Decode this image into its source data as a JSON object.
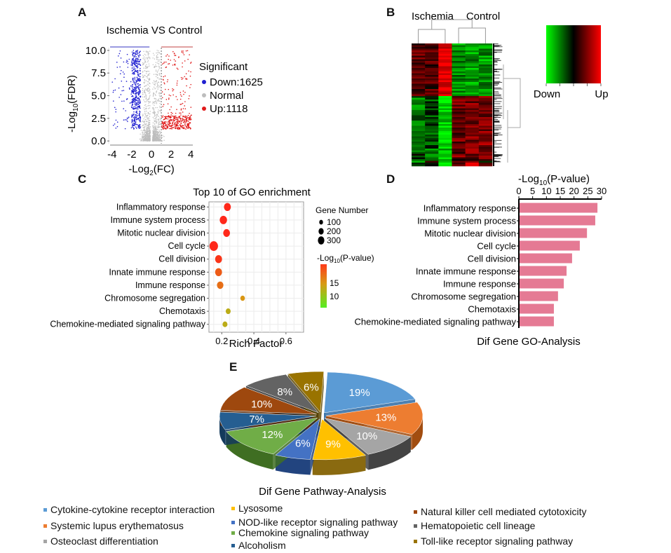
{
  "panels": {
    "A": "A",
    "B": "B",
    "C": "C",
    "D": "D",
    "E": "E"
  },
  "chart_data": [
    {
      "id": "A",
      "type": "scatter",
      "title": "Ischemia VS Control",
      "xlabel": "-Log2(FC)",
      "xlabel_main": "-Log",
      "xlabel_sub": "2",
      "xlabel_tail": "(FC)",
      "ylabel_main": "-Log",
      "ylabel_sub": "10",
      "ylabel_tail": "(FDR)",
      "xlim": [
        -4.2,
        4.2
      ],
      "ylim": [
        -0.3,
        10.3
      ],
      "xticks": [
        -4,
        -2,
        0,
        2,
        4
      ],
      "xtick_labels": [
        "-4",
        "-2",
        "0",
        "2",
        "4"
      ],
      "yticks": [
        0,
        2.5,
        5,
        7.5,
        10
      ],
      "ytick_labels": [
        "0.0",
        "2.5",
        "5.0",
        "7.5",
        "10.0"
      ],
      "threshold_x": 1,
      "legend": {
        "title": "Significant",
        "items": [
          {
            "label": "Down:1625",
            "color": "#1f1fd0"
          },
          {
            "label": "Normal",
            "color": "#bdbdbd"
          },
          {
            "label": "Up:1118",
            "color": "#e01b1b"
          }
        ]
      },
      "series": [
        {
          "name": "Down",
          "count": 1625,
          "color": "#1f1fd0"
        },
        {
          "name": "Normal",
          "color": "#bdbdbd"
        },
        {
          "name": "Up",
          "count": 1118,
          "color": "#e01b1b"
        }
      ]
    },
    {
      "id": "B",
      "type": "heatmap",
      "group_labels": [
        "Ischemia",
        "Control"
      ],
      "columns": 6,
      "scale_labels": {
        "low": "Down",
        "high": "Up"
      },
      "scale_colors": [
        "#00ff00",
        "#000000",
        "#ff0000"
      ],
      "blocks": [
        {
          "rows": "upper",
          "pattern": [
            [
              -0.3,
              -0.1,
              0.9,
              0.5,
              0.5,
              0.5
            ],
            [
              -0.5,
              -0.5,
              -0.5,
              0.5,
              0.5,
              0.5
            ]
          ]
        }
      ],
      "row_blocks": [
        {
          "fraction": 0.42,
          "values": [
            0.35,
            0.25,
            0.95,
            -0.55,
            -0.6,
            -0.6
          ]
        },
        {
          "fraction": 0.58,
          "values": [
            -0.45,
            -0.3,
            -0.85,
            0.4,
            0.45,
            0.5
          ]
        }
      ]
    },
    {
      "id": "C",
      "type": "scatter",
      "title": "Top 10 of GO enrichment",
      "xlabel": "Rich Factor",
      "xlim": [
        0.12,
        0.71
      ],
      "xticks": [
        0.2,
        0.4,
        0.6
      ],
      "xtick_labels": [
        "0.2",
        "0.4",
        "0.6"
      ],
      "categories": [
        "Inflammatory response",
        "Immune system process",
        "Mitotic nuclear division",
        "Cell cycle",
        "Cell division",
        "Innate immune response",
        "Immune response",
        "Chromosome segregation",
        "Chemotaxis",
        "Chemokine-mediated signaling pathway"
      ],
      "rich_factor": [
        0.235,
        0.21,
        0.23,
        0.15,
        0.18,
        0.18,
        0.19,
        0.33,
        0.24,
        0.22
      ],
      "gene_number": [
        230,
        250,
        220,
        320,
        230,
        230,
        200,
        90,
        110,
        110
      ],
      "neg_log10_p": [
        28.5,
        27.7,
        24.7,
        22.1,
        19.3,
        17.3,
        16.3,
        14.2,
        12.7,
        12.7
      ],
      "size_legend": {
        "title": "Gene Number",
        "values": [
          100,
          200,
          300
        ],
        "labels": [
          "100",
          "200",
          "300"
        ]
      },
      "color_legend": {
        "title_main": "-Log",
        "title_sub": "10",
        "title_tail": "(P-value)",
        "ticks": [
          "15",
          "10"
        ],
        "range": [
          8,
          20
        ]
      }
    },
    {
      "id": "D",
      "type": "bar",
      "orientation": "horizontal",
      "title": "Dif Gene GO-Analysis",
      "axis_label_main": "-Log",
      "axis_label_sub": "10",
      "axis_label_tail": "(P-value)",
      "xlim": [
        0,
        30
      ],
      "xticks": [
        0,
        5,
        10,
        15,
        20,
        25,
        30
      ],
      "xtick_labels": [
        "0",
        "5",
        "10",
        "15",
        "20",
        "25",
        "30"
      ],
      "categories": [
        "Inflammatory response",
        "Immune system process",
        "Mitotic nuclear division",
        "Cell cycle",
        "Cell division",
        "Innate immune response",
        "Immune response",
        "Chromosome segregation",
        "Chemotaxis",
        "Chemokine-mediated signaling pathway"
      ],
      "values": [
        28.5,
        27.7,
        24.7,
        22.1,
        19.3,
        17.3,
        16.3,
        14.2,
        12.7,
        12.7
      ],
      "color": "#e57a94"
    },
    {
      "id": "E",
      "type": "pie",
      "title": "Dif Gene Pathway-Analysis",
      "slices": [
        {
          "label": "Cytokine-cytokine receptor interaction",
          "value": 19,
          "text": "19%",
          "color": "#5b9bd5",
          "dark": "#2e6aa3"
        },
        {
          "label": "Systemic lupus erythematosus",
          "value": 13,
          "text": "13%",
          "color": "#ed7d31",
          "dark": "#a24d10"
        },
        {
          "label": "Osteoclast differentiation",
          "value": 10,
          "text": "10%",
          "color": "#a5a5a5",
          "dark": "#444444"
        },
        {
          "label": "Lysosome",
          "value": 9,
          "text": "9%",
          "color": "#ffc000",
          "dark": "#8a6a10"
        },
        {
          "label": "NOD-like receptor signaling pathway",
          "value": 6,
          "text": "6%",
          "color": "#4472c4",
          "dark": "#22447f"
        },
        {
          "label": "Chemokine signaling pathway",
          "value": 12,
          "text": "12%",
          "color": "#70ad47",
          "dark": "#3f6e22"
        },
        {
          "label": "Alcoholism",
          "value": 7,
          "text": "7%",
          "color": "#255e91",
          "dark": "#143a5c"
        },
        {
          "label": "Natural killer cell mediated cytotoxicity",
          "value": 10,
          "text": "10%",
          "color": "#9e480e",
          "dark": "#5e2a07"
        },
        {
          "label": "Hematopoietic cell lineage",
          "value": 8,
          "text": "8%",
          "color": "#636363",
          "dark": "#333333"
        },
        {
          "label": "Toll-like receptor signaling pathway",
          "value": 6,
          "text": "6%",
          "color": "#997300",
          "dark": "#5c4500"
        }
      ]
    }
  ]
}
